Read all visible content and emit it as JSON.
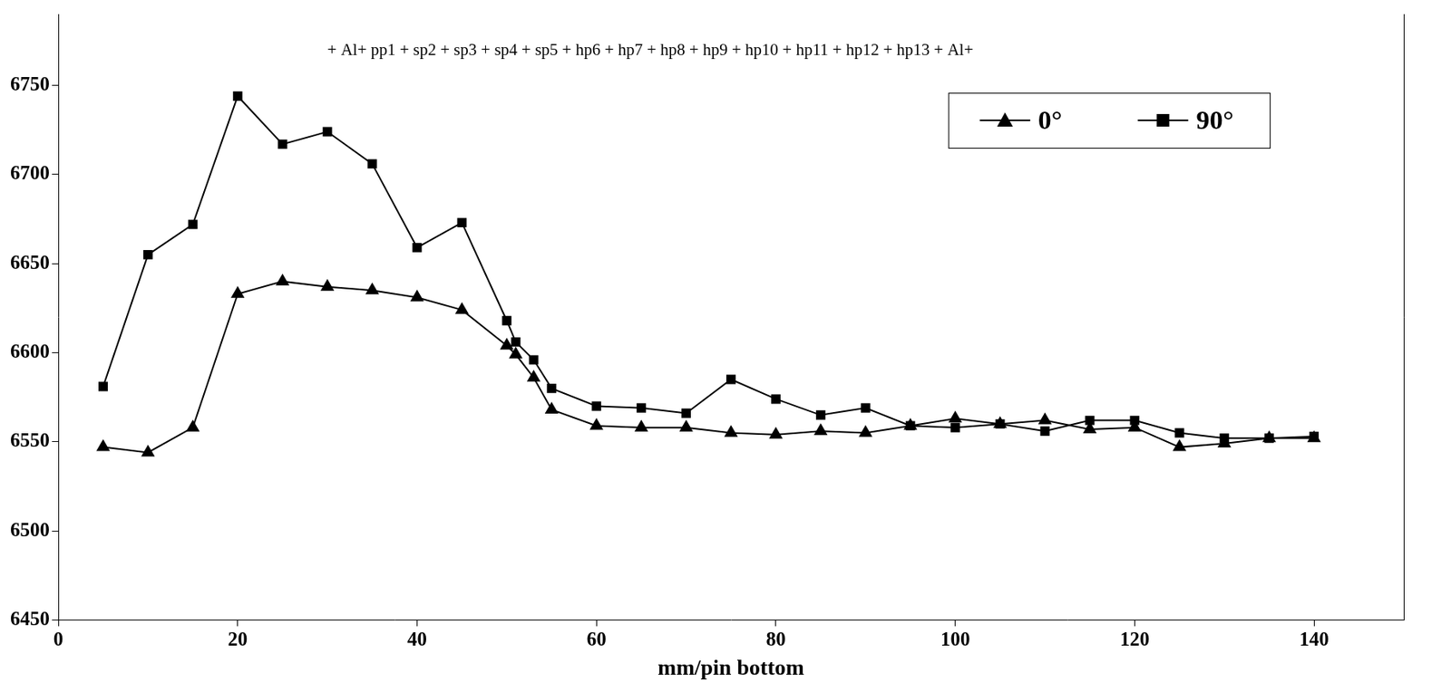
{
  "chart_data": {
    "type": "line",
    "x_label": "mm/pin bottom",
    "annotations": [
      "+ Al+ pp1 + sp2 + sp3 + sp4 + sp5 + hp6 + hp7 + hp8 + hp9 + hp10 + hp11 + hp12 + hp13 + Al+"
    ],
    "x": [
      5,
      10,
      15,
      20,
      25,
      30,
      35,
      40,
      45,
      50,
      51,
      53,
      55,
      60,
      65,
      70,
      75,
      80,
      85,
      90,
      95,
      100,
      105,
      110,
      115,
      120,
      125,
      130,
      135,
      140
    ],
    "series": [
      {
        "name": "0°",
        "color": "#000000",
        "marker": "triangle",
        "line_style": "solid",
        "values": [
          6547,
          6544,
          6558,
          6633,
          6640,
          6637,
          6635,
          6631,
          6624,
          6604,
          6599,
          6586,
          6568,
          6559,
          6558,
          6558,
          6555,
          6554,
          6556,
          6555,
          6559,
          6563,
          6560,
          6562,
          6557,
          6558,
          6547,
          6549,
          6552,
          6552
        ]
      },
      {
        "name": "90°",
        "color": "#000000",
        "marker": "square",
        "line_style": "solid",
        "values": [
          6581,
          6655,
          6672,
          6744,
          6717,
          6724,
          6706,
          6659,
          6673,
          6618,
          6606,
          6596,
          6580,
          6570,
          6569,
          6566,
          6585,
          6574,
          6565,
          6569,
          6559,
          6558,
          6560,
          6556,
          6562,
          6562,
          6555,
          6552,
          6552,
          6553
        ]
      }
    ],
    "xlim": [
      0,
      150
    ],
    "xticks": [
      0,
      20,
      40,
      60,
      80,
      100,
      120,
      140
    ],
    "ylim": [
      6450,
      6790
    ],
    "yticks": [
      6450,
      6500,
      6550,
      6600,
      6650,
      6700,
      6750
    ],
    "grid": false,
    "legend": "upper right"
  }
}
